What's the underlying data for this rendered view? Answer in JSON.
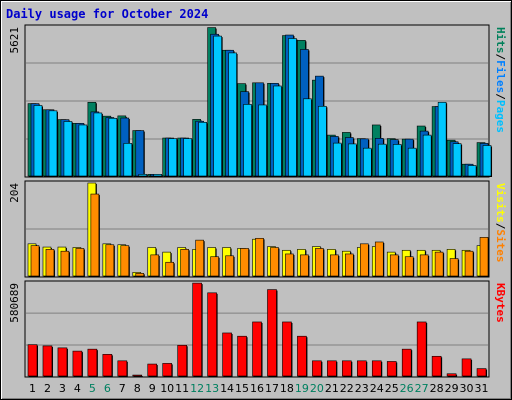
{
  "title": "Daily usage for October 2024",
  "chart_data": [
    {
      "type": "bar",
      "name_panel": "hits-files-pages",
      "ymax_label": "5621",
      "ylim": [
        0,
        5621
      ],
      "labels_right": [
        "Pages",
        "/",
        "Files",
        "/",
        "Hits"
      ],
      "label_colors": [
        "#00c0ff",
        "#000000",
        "#0080ff",
        "#000000",
        "#00805a"
      ],
      "series": [
        {
          "name": "Hits",
          "color": "#008060",
          "values": [
            2750,
            2520,
            2150,
            2010,
            2800,
            2280,
            2290,
            1740,
            100,
            1460,
            1460,
            2160,
            5600,
            4750,
            3500,
            3530,
            3510,
            5300,
            5120,
            3630,
            1570,
            1670,
            1440,
            1950,
            1440,
            1420,
            1910,
            2640,
            1380,
            480,
            1290
          ]
        },
        {
          "name": "Files",
          "color": "#0060c0",
          "values": [
            2750,
            2520,
            2150,
            2010,
            2440,
            2230,
            2210,
            1740,
            100,
            1460,
            1460,
            2090,
            5350,
            4750,
            3200,
            3530,
            3510,
            5320,
            4780,
            3780,
            1520,
            1480,
            1430,
            1450,
            1400,
            1420,
            1720,
            2640,
            1320,
            480,
            1260
          ]
        },
        {
          "name": "Pages",
          "color": "#00c8ff",
          "values": [
            2680,
            2480,
            2080,
            1950,
            2400,
            2200,
            1260,
            100,
            100,
            1440,
            1440,
            2050,
            5280,
            4650,
            2720,
            2700,
            3410,
            5190,
            2930,
            2650,
            1270,
            1240,
            1080,
            1230,
            1220,
            1080,
            1570,
            2800,
            1250,
            430,
            1180
          ]
        }
      ]
    },
    {
      "type": "bar",
      "name_panel": "visits-sites",
      "ymax_label": "204",
      "ylim": [
        0,
        204
      ],
      "labels_right": [
        "Sites",
        "/",
        "Visits"
      ],
      "label_colors": [
        "#ff8000",
        "#000000",
        "#ffff00"
      ],
      "series": [
        {
          "name": "Visits",
          "color": "#ffff00",
          "values": [
            72,
            65,
            65,
            64,
            204,
            72,
            70,
            10,
            64,
            54,
            64,
            60,
            64,
            64,
            62,
            82,
            66,
            58,
            60,
            66,
            60,
            56,
            64,
            66,
            54,
            58,
            58,
            58,
            60,
            58,
            68
          ]
        },
        {
          "name": "Sites",
          "color": "#ff8c00",
          "values": [
            68,
            60,
            56,
            62,
            180,
            70,
            68,
            8,
            48,
            32,
            60,
            80,
            44,
            46,
            62,
            84,
            64,
            50,
            48,
            62,
            48,
            50,
            72,
            76,
            48,
            44,
            48,
            54,
            40,
            56,
            86
          ]
        }
      ]
    },
    {
      "type": "bar",
      "name_panel": "kbytes",
      "ymax_label": "580689",
      "ylim": [
        0,
        580689
      ],
      "labels_right": [
        "KBytes"
      ],
      "label_colors": [
        "#ff0000"
      ],
      "series": [
        {
          "name": "KBytes",
          "color": "#ff0000",
          "values": [
            200000,
            192000,
            180000,
            160000,
            172000,
            140000,
            100000,
            12000,
            80000,
            84000,
            196000,
            580000,
            520000,
            272000,
            252000,
            340000,
            540000,
            340000,
            252000,
            100000,
            100000,
            100000,
            100000,
            100000,
            96000,
            172000,
            340000,
            128000,
            20000,
            112000,
            52000
          ]
        }
      ]
    }
  ],
  "days": [
    "1",
    "2",
    "3",
    "4",
    "5",
    "6",
    "7",
    "8",
    "9",
    "10",
    "11",
    "12",
    "13",
    "14",
    "15",
    "16",
    "17",
    "18",
    "19",
    "20",
    "21",
    "22",
    "23",
    "24",
    "25",
    "26",
    "27",
    "28",
    "29",
    "30",
    "31"
  ],
  "weekend_days": [
    "5",
    "6",
    "12",
    "13",
    "19",
    "20",
    "26",
    "27"
  ],
  "day_colors": {
    "weekday": "#000000",
    "weekend": "#008060"
  }
}
